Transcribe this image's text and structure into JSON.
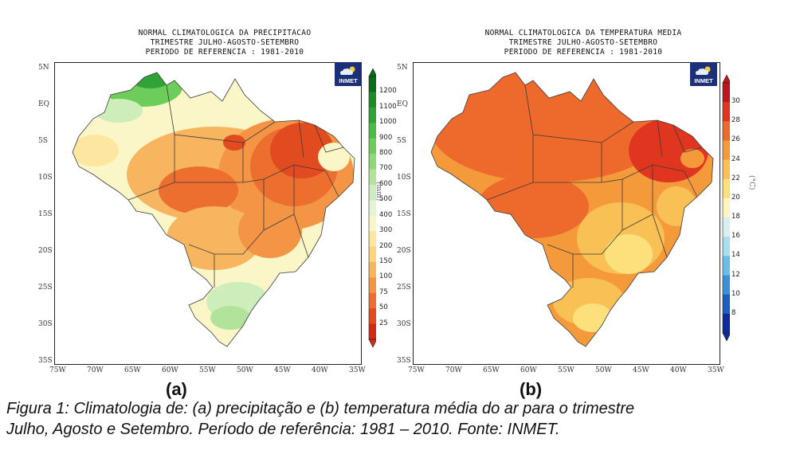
{
  "panel_a": {
    "title_lines": [
      "NORMAL CLIMATOLOGICA DA PRECIPITACAO",
      "TRIMESTRE JULHO-AGOSTO-SETEMBRO",
      "PERIODO DE REFERENCIA : 1981-2010"
    ],
    "logo_text": "INMET",
    "colorbar_unit": "(mm)",
    "colorbar_ticks": [
      "1200",
      "1100",
      "1000",
      "900",
      "800",
      "700",
      "600",
      "500",
      "400",
      "300",
      "200",
      "150",
      "100",
      "75",
      "50",
      "25"
    ],
    "colorbar_colors": [
      "#0b6b1a",
      "#1e8a27",
      "#2fa336",
      "#4cbb45",
      "#6ccd5a",
      "#8ed878",
      "#b2e39a",
      "#cdedba",
      "#e3f4d3",
      "#fbf6c8",
      "#fde6a0",
      "#fbd47c",
      "#f8b560",
      "#f39545",
      "#ec6f30",
      "#e24a20",
      "#d22a14"
    ],
    "panel_label": "(a)"
  },
  "panel_b": {
    "title_lines": [
      "NORMAL CLIMATOLOGICA DA TEMPERATURA MEDIA",
      "TRIMESTRE JULHO-AGOSTO-SETEMBRO",
      "PERIODO DE REFERENCIA : 1981-2010"
    ],
    "logo_text": "INMET",
    "colorbar_unit": "(°C)",
    "colorbar_ticks": [
      "30",
      "28",
      "26",
      "24",
      "22",
      "20",
      "18",
      "16",
      "14",
      "12",
      "10",
      "8"
    ],
    "colorbar_colors": [
      "#c0151b",
      "#e0361f",
      "#ee6a2c",
      "#f59a3a",
      "#f9c055",
      "#fbe07c",
      "#fdf6c0",
      "#d8f0f0",
      "#a9ddf0",
      "#6cbde6",
      "#3a92d6",
      "#1b5fc0",
      "#0c2a9c"
    ],
    "panel_label": "(b)"
  },
  "lat_labels": [
    "5N",
    "EQ",
    "5S",
    "10S",
    "15S",
    "20S",
    "25S",
    "30S",
    "35S"
  ],
  "lon_labels": [
    "75W",
    "70W",
    "65W",
    "60W",
    "55W",
    "50W",
    "45W",
    "40W",
    "35W"
  ],
  "caption_lines": [
    "Figura 1: Climatologia de: (a) precipitação e (b) temperatura média do ar para o trimestre",
    "Julho, Agosto e Setembro. Período de referência: 1981 – 2010. Fonte: INMET."
  ]
}
